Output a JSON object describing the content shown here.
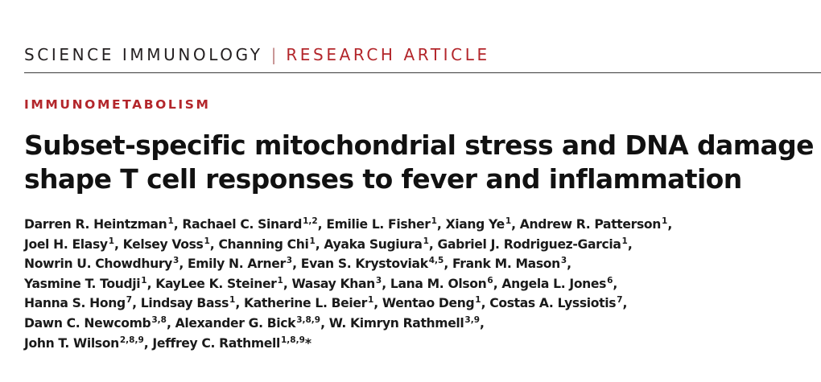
{
  "journal": "SCIENCE IMMUNOLOGY",
  "separator": "|",
  "section": "RESEARCH ARTICLE",
  "category": "IMMUNOMETABOLISM",
  "title_lines": [
    "Subset-specific mitochondrial stress and DNA damage",
    "shape T cell responses to fever and inflammation"
  ],
  "author_lines": [
    [
      {
        "name": "Darren R. Heintzman",
        "aff": "1"
      },
      {
        "name": "Rachael C. Sinard",
        "aff": "1,2"
      },
      {
        "name": "Emilie L. Fisher",
        "aff": "1"
      },
      {
        "name": "Xiang Ye",
        "aff": "1"
      },
      {
        "name": "Andrew R. Patterson",
        "aff": "1"
      }
    ],
    [
      {
        "name": "Joel H. Elasy",
        "aff": "1"
      },
      {
        "name": "Kelsey Voss",
        "aff": "1"
      },
      {
        "name": "Channing Chi",
        "aff": "1"
      },
      {
        "name": "Ayaka Sugiura",
        "aff": "1"
      },
      {
        "name": "Gabriel J. Rodriguez-Garcia",
        "aff": "1"
      }
    ],
    [
      {
        "name": "Nowrin U. Chowdhury",
        "aff": "3"
      },
      {
        "name": "Emily N. Arner",
        "aff": "3"
      },
      {
        "name": "Evan S. Krystoviak",
        "aff": "4,5"
      },
      {
        "name": "Frank M. Mason",
        "aff": "3"
      }
    ],
    [
      {
        "name": "Yasmine T. Toudji",
        "aff": "1"
      },
      {
        "name": "KayLee K. Steiner",
        "aff": "1"
      },
      {
        "name": "Wasay Khan",
        "aff": "3"
      },
      {
        "name": "Lana M. Olson",
        "aff": "6"
      },
      {
        "name": "Angela L. Jones",
        "aff": "6"
      }
    ],
    [
      {
        "name": "Hanna S. Hong",
        "aff": "7"
      },
      {
        "name": "Lindsay Bass",
        "aff": "1"
      },
      {
        "name": "Katherine L. Beier",
        "aff": "1"
      },
      {
        "name": "Wentao Deng",
        "aff": "1"
      },
      {
        "name": "Costas A. Lyssiotis",
        "aff": "7"
      }
    ],
    [
      {
        "name": "Dawn C. Newcomb",
        "aff": "3,8"
      },
      {
        "name": "Alexander G. Bick",
        "aff": "3,8,9"
      },
      {
        "name": "W. Kimryn Rathmell",
        "aff": "3,9"
      }
    ],
    [
      {
        "name": "John T. Wilson",
        "aff": "2,8,9"
      },
      {
        "name": "Jeffrey C. Rathmell",
        "aff": "1,8,9",
        "corresponding": "*"
      }
    ]
  ]
}
